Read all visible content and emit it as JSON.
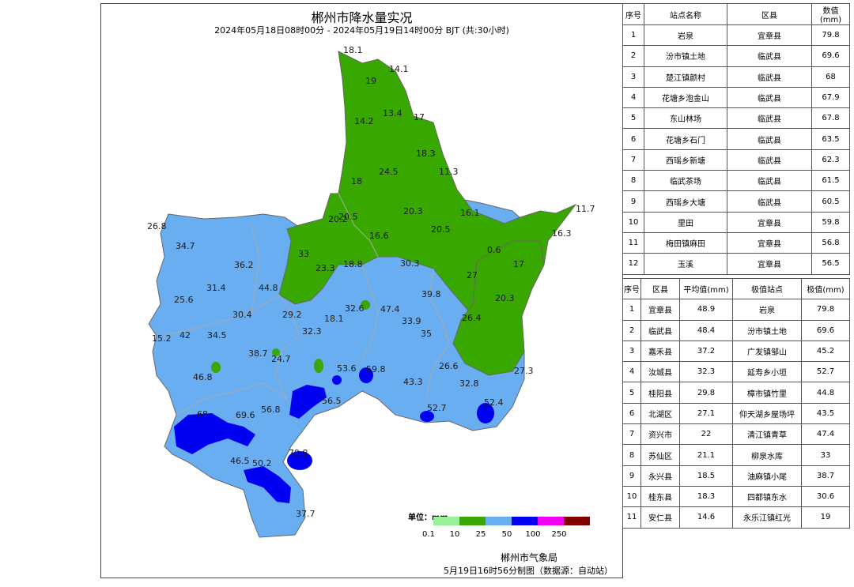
{
  "map": {
    "title": "郴州市降水量实况",
    "subtitle": "2024年05月18日08时00分 - 2024年05月19日14时00分 BJT (共:30小时)",
    "colors": {
      "c1": "#99f299",
      "c2": "#38a800",
      "c3": "#6aaef2",
      "c4": "#0000f0",
      "c5": "#f000f0",
      "c6": "#800000",
      "border": "#aaaaaa"
    },
    "labels": [
      {
        "t": "18.1"
      },
      {
        "t": "14.1"
      },
      {
        "t": "19"
      },
      {
        "t": "13.4"
      },
      {
        "t": "17"
      },
      {
        "t": "14.2"
      },
      {
        "t": "18.3"
      },
      {
        "t": "24.5"
      },
      {
        "t": "11.3"
      },
      {
        "t": "18"
      },
      {
        "t": "20.3"
      },
      {
        "t": "16.1"
      },
      {
        "t": "11.7"
      },
      {
        "t": "20.5"
      },
      {
        "t": "20.2"
      },
      {
        "t": "16.6"
      },
      {
        "t": "20.5"
      },
      {
        "t": "16.3"
      },
      {
        "t": "26.8"
      },
      {
        "t": "34.7"
      },
      {
        "t": "33"
      },
      {
        "t": "18.8"
      },
      {
        "t": "23.3"
      },
      {
        "t": "30.3"
      },
      {
        "t": "0.6"
      },
      {
        "t": "17"
      },
      {
        "t": "36.2"
      },
      {
        "t": "31.4"
      },
      {
        "t": "44.8"
      },
      {
        "t": "39.8"
      },
      {
        "t": "27"
      },
      {
        "t": "20.3"
      },
      {
        "t": "25.6"
      },
      {
        "t": "30.4"
      },
      {
        "t": "29.2"
      },
      {
        "t": "18.1"
      },
      {
        "t": "32.6"
      },
      {
        "t": "47.4"
      },
      {
        "t": "33.9"
      },
      {
        "t": "26.4"
      },
      {
        "t": "15.2"
      },
      {
        "t": "42"
      },
      {
        "t": "34.5"
      },
      {
        "t": "32.3"
      },
      {
        "t": "35"
      },
      {
        "t": "38.7"
      },
      {
        "t": "24.7"
      },
      {
        "t": "53.6"
      },
      {
        "t": "59.8"
      },
      {
        "t": "26.6"
      },
      {
        "t": "27.3"
      },
      {
        "t": "46.8"
      },
      {
        "t": "43.3"
      },
      {
        "t": "32.8"
      },
      {
        "t": "56.5"
      },
      {
        "t": "52.4"
      },
      {
        "t": "52.7"
      },
      {
        "t": "68"
      },
      {
        "t": "69.6"
      },
      {
        "t": "56.8"
      },
      {
        "t": "46.5"
      },
      {
        "t": "50.2"
      },
      {
        "t": "79.8"
      },
      {
        "t": "37.7"
      }
    ]
  },
  "legend": {
    "unit": "单位：mm",
    "ticks": [
      "0.1",
      "10",
      "25",
      "50",
      "100",
      "250"
    ]
  },
  "footer": {
    "org": "郴州市气象局",
    "note": "5月19日16时56分制图（数据源：自动站）"
  },
  "stations_table": {
    "headers": [
      "序号",
      "站点名称",
      "区县",
      "数值(mm)"
    ],
    "rows": [
      [
        "1",
        "岩泉",
        "宜章县",
        "79.8"
      ],
      [
        "2",
        "汾市镇土地",
        "临武县",
        "69.6"
      ],
      [
        "3",
        "楚江镇颜村",
        "临武县",
        "68"
      ],
      [
        "4",
        "花塘乡泡金山",
        "临武县",
        "67.9"
      ],
      [
        "5",
        "东山林场",
        "临武县",
        "67.8"
      ],
      [
        "6",
        "花塘乡石门",
        "临武县",
        "63.5"
      ],
      [
        "7",
        "西瑶乡新塘",
        "临武县",
        "62.3"
      ],
      [
        "8",
        "临武茶场",
        "临武县",
        "61.5"
      ],
      [
        "9",
        "西瑶乡大塘",
        "临武县",
        "60.5"
      ],
      [
        "10",
        "里田",
        "宜章县",
        "59.8"
      ],
      [
        "11",
        "梅田镇麻田",
        "宜章县",
        "56.8"
      ],
      [
        "12",
        "玉溪",
        "宜章县",
        "56.5"
      ]
    ]
  },
  "counties_table": {
    "headers": [
      "序号",
      "区县",
      "平均值(mm)",
      "极值站点",
      "极值(mm)"
    ],
    "rows": [
      [
        "1",
        "宜章县",
        "48.9",
        "岩泉",
        "79.8"
      ],
      [
        "2",
        "临武县",
        "48.4",
        "汾市镇土地",
        "69.6"
      ],
      [
        "3",
        "嘉禾县",
        "37.2",
        "广发镇邹山",
        "45.2"
      ],
      [
        "4",
        "汝城县",
        "32.3",
        "延寿乡小垣",
        "52.7"
      ],
      [
        "5",
        "桂阳县",
        "29.8",
        "樟市镇竹里",
        "44.8"
      ],
      [
        "6",
        "北湖区",
        "27.1",
        "仰天湖乡屋场坪",
        "43.5"
      ],
      [
        "7",
        "资兴市",
        "22",
        "清江镇青草",
        "47.4"
      ],
      [
        "8",
        "苏仙区",
        "21.1",
        "柳泉水库",
        "33"
      ],
      [
        "9",
        "永兴县",
        "18.5",
        "油麻镇小尾",
        "38.7"
      ],
      [
        "10",
        "桂东县",
        "18.3",
        "四都镇东水",
        "30.6"
      ],
      [
        "11",
        "安仁县",
        "14.6",
        "永乐江镇红光",
        "19"
      ]
    ]
  }
}
